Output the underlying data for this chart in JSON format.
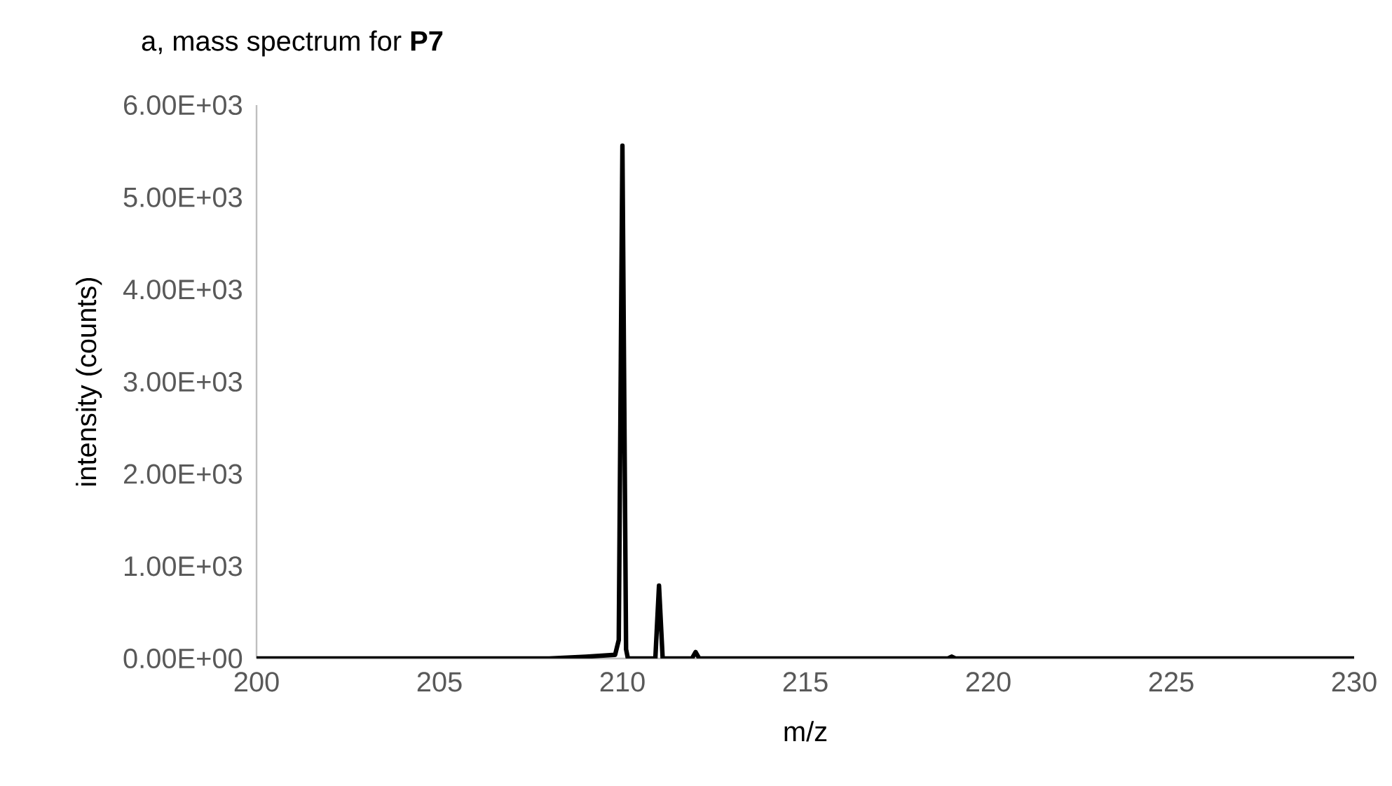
{
  "chart_data": {
    "type": "line",
    "title": "a, mass spectrum for **P7**",
    "xlabel": "m/z",
    "ylabel": "intensity (counts)",
    "series": [
      {
        "color": "#000000",
        "x": [
          200,
          208,
          209,
          209.8,
          209.9,
          210.0,
          210.1,
          210.15,
          210.9,
          211.0,
          211.1,
          211.9,
          212.0,
          212.1,
          218.9,
          219.0,
          219.1,
          230
        ],
        "values": [
          0,
          0,
          20,
          40,
          200,
          5560,
          100,
          0,
          0,
          790,
          0,
          0,
          70,
          0,
          0,
          20,
          0,
          0
        ]
      }
    ],
    "xlim": [
      200,
      230
    ],
    "xticks": [
      200,
      205,
      210,
      215,
      220,
      225,
      230
    ],
    "ylim": [
      0,
      6000
    ],
    "yticks": [
      {
        "value": 0,
        "label": "0.00E+00"
      },
      {
        "value": 1000,
        "label": "1.00E+03"
      },
      {
        "value": 2000,
        "label": "2.00E+03"
      },
      {
        "value": 3000,
        "label": "3.00E+03"
      },
      {
        "value": 4000,
        "label": "4.00E+03"
      },
      {
        "value": 5000,
        "label": "5.00E+03"
      },
      {
        "value": 6000,
        "label": "6.00E+03"
      }
    ],
    "grid": false,
    "marker": "none",
    "line_style": "solid"
  }
}
